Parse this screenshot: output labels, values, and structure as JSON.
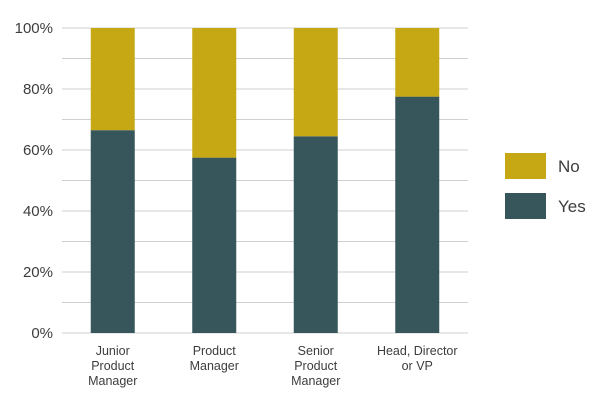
{
  "chart_data": {
    "type": "bar",
    "stacked": true,
    "percent": true,
    "categories": [
      [
        "Junior",
        "Product",
        "Manager"
      ],
      [
        "Product",
        "Manager"
      ],
      [
        "Senior",
        "Product",
        "Manager"
      ],
      [
        "Head, Director",
        "or VP"
      ]
    ],
    "series": [
      {
        "name": "Yes",
        "color": "#37565c",
        "values": [
          66.5,
          57.5,
          64.5,
          77.5
        ]
      },
      {
        "name": "No",
        "color": "#c6a815",
        "values": [
          33.5,
          42.5,
          35.5,
          22.5
        ]
      }
    ],
    "ylim": [
      0,
      100
    ],
    "yticks": [
      0,
      20,
      40,
      60,
      80,
      100
    ],
    "ytick_labels": [
      "0%",
      "20%",
      "40%",
      "60%",
      "80%",
      "100%"
    ],
    "minor_grid_step": 10,
    "grid": true,
    "legend_position": "right",
    "title": "",
    "xlabel": "",
    "ylabel": ""
  }
}
